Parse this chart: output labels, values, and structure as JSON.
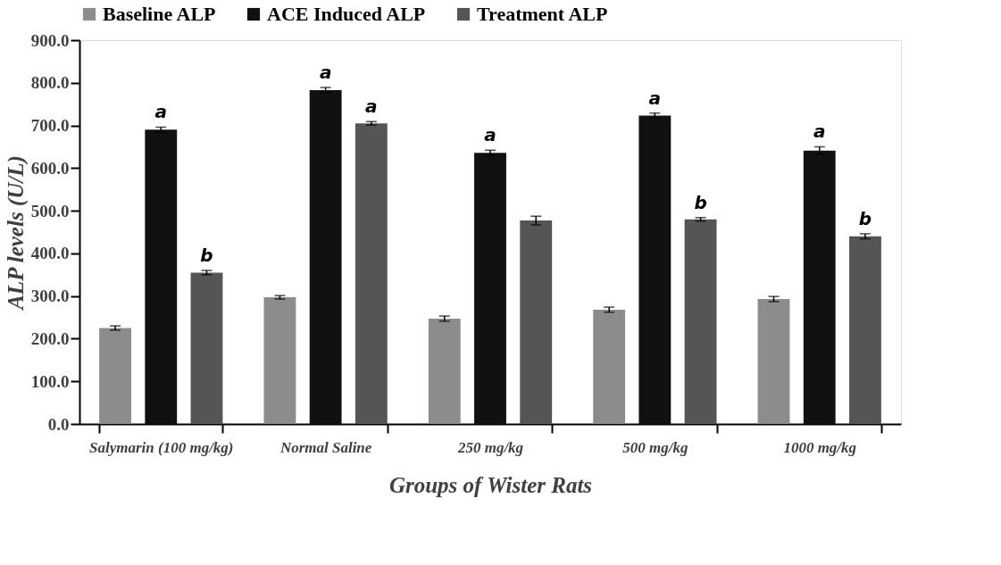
{
  "chart_data": {
    "type": "bar",
    "xlabel": "Groups of Wister Rats",
    "ylabel": "ALP levels (U/L)",
    "categories": [
      "Salymarin (100 mg/kg)",
      "Normal Saline",
      "250 mg/kg",
      "500 mg/kg",
      "1000 mg/kg"
    ],
    "series": [
      {
        "name": "Baseline ALP",
        "color": "#8c8c8c",
        "values": [
          225,
          297,
          247,
          268,
          293
        ],
        "errors": [
          5,
          4,
          6,
          6,
          6
        ]
      },
      {
        "name": "ACE Induced ALP",
        "color": "#111111",
        "values": [
          690,
          783,
          636,
          723,
          641
        ],
        "errors": [
          6,
          6,
          6,
          6,
          9
        ],
        "value_labels": [
          "a",
          "a",
          "a",
          "a",
          "a"
        ]
      },
      {
        "name": "Treatment ALP",
        "color": "#555555",
        "values": [
          355,
          705,
          477,
          480,
          440
        ],
        "errors": [
          5,
          4,
          10,
          4,
          6
        ],
        "value_labels": [
          "b",
          "a",
          null,
          "b",
          "b"
        ]
      }
    ],
    "ylim": [
      0,
      900
    ],
    "yticks": [
      {
        "value": 0,
        "label": "0.0"
      },
      {
        "value": 100,
        "label": "100.0"
      },
      {
        "value": 200,
        "label": "200.0"
      },
      {
        "value": 300,
        "label": "300.0"
      },
      {
        "value": 400,
        "label": "400.0"
      },
      {
        "value": 500,
        "label": "500.0"
      },
      {
        "value": 600,
        "label": "600.0"
      },
      {
        "value": 700,
        "label": "700.0"
      },
      {
        "value": 800,
        "label": "800.0"
      },
      {
        "value": 900,
        "label": "900.0"
      }
    ],
    "legend": "top",
    "grid": false
  }
}
